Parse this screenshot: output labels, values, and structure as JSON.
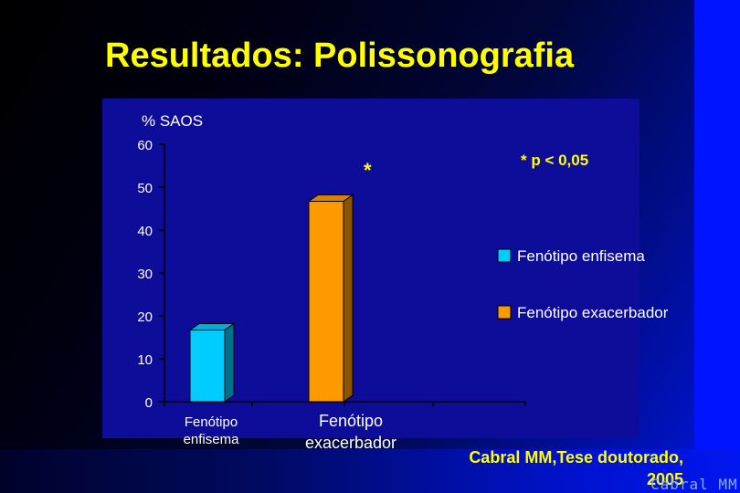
{
  "slide": {
    "title": "Resultados: Polissonografia",
    "credit_line1": "Cabral MM,Tese doutorado,",
    "credit_line2": "2005",
    "author_mark": "Cabral MM"
  },
  "colors": {
    "title": "#ffff00",
    "panel": "#0d0d9a",
    "enfisema": "#00ccff",
    "exacerbador": "#ff9900"
  },
  "chart_data": {
    "type": "bar",
    "ylabel": "% SAOS",
    "ylim": [
      0,
      60
    ],
    "yticks": [
      "0",
      "10",
      "20",
      "30",
      "40",
      "50",
      "60"
    ],
    "categories": [
      {
        "line1": "Fenótipo",
        "line2": "enfisema"
      },
      {
        "line1": "Fenótipo",
        "line2": "exacerbador"
      }
    ],
    "values": [
      16.7,
      46.7
    ],
    "bar_colors": [
      "#00ccff",
      "#ff9900"
    ],
    "significance_marker": "*",
    "annotation": "* p < 0,05",
    "legend": {
      "placement": "right",
      "items": [
        {
          "label": "Fenótipo enfisema",
          "color": "#00ccff"
        },
        {
          "label": "Fenótipo exacerbador",
          "color": "#ff9900"
        }
      ]
    },
    "grid": false,
    "bar_style": "3d"
  }
}
